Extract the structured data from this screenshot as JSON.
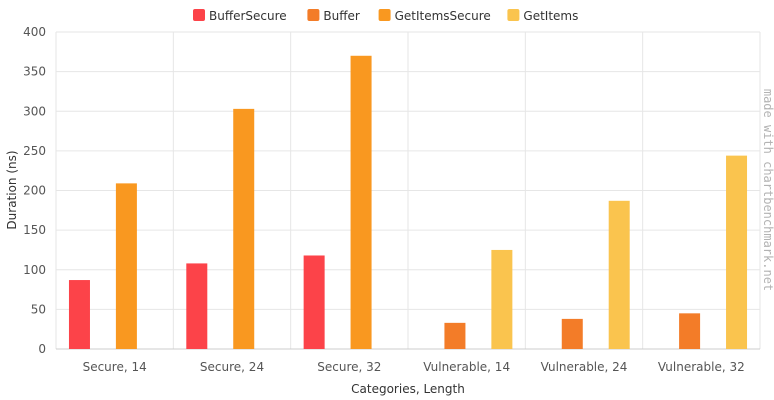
{
  "chart_data": {
    "type": "bar",
    "categories": [
      "Secure, 14",
      "Secure, 24",
      "Secure, 32",
      "Vulnerable, 14",
      "Vulnerable, 24",
      "Vulnerable, 32"
    ],
    "series": [
      {
        "name": "BufferSecure",
        "color": "#fc4349",
        "values": [
          87,
          108,
          118,
          null,
          null,
          null
        ]
      },
      {
        "name": "Buffer",
        "color": "#f37c28",
        "values": [
          null,
          null,
          null,
          33,
          38,
          45
        ]
      },
      {
        "name": "GetItemsSecure",
        "color": "#f99820",
        "values": [
          209,
          303,
          370,
          null,
          null,
          null
        ]
      },
      {
        "name": "GetItems",
        "color": "#fac44e",
        "values": [
          null,
          null,
          null,
          125,
          187,
          244
        ]
      }
    ],
    "xlabel": "Categories, Length",
    "ylabel": "Duration (ns)",
    "ylim": [
      0,
      400
    ],
    "yticks": [
      0,
      50,
      100,
      150,
      200,
      250,
      300,
      350,
      400
    ],
    "grid": true,
    "legend_position": "top"
  },
  "watermark": "made with chartbenchmark.net"
}
